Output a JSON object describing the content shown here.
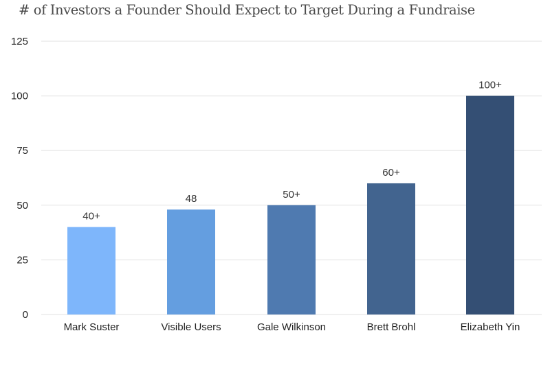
{
  "chart_data": {
    "type": "bar",
    "title": "# of Investors a Founder Should Expect to Target During a Fundraise",
    "xlabel": "",
    "ylabel": "",
    "categories": [
      "Mark Suster",
      "Visible Users",
      "Gale Wilkinson",
      "Brett Brohl",
      "Elizabeth Yin"
    ],
    "values": [
      40,
      48,
      50,
      60,
      100
    ],
    "data_labels": [
      "40+",
      "48",
      "50+",
      "60+",
      "100+"
    ],
    "colors": [
      "#7EB6FB",
      "#649EE0",
      "#4F7AB0",
      "#42648F",
      "#344F74"
    ],
    "ylim": [
      0,
      125
    ],
    "yticks": [
      0,
      25,
      50,
      75,
      100,
      125
    ],
    "ytick_labels": [
      "0",
      "25",
      "50",
      "75",
      "100",
      "125"
    ],
    "grid": true,
    "legend": "none"
  }
}
